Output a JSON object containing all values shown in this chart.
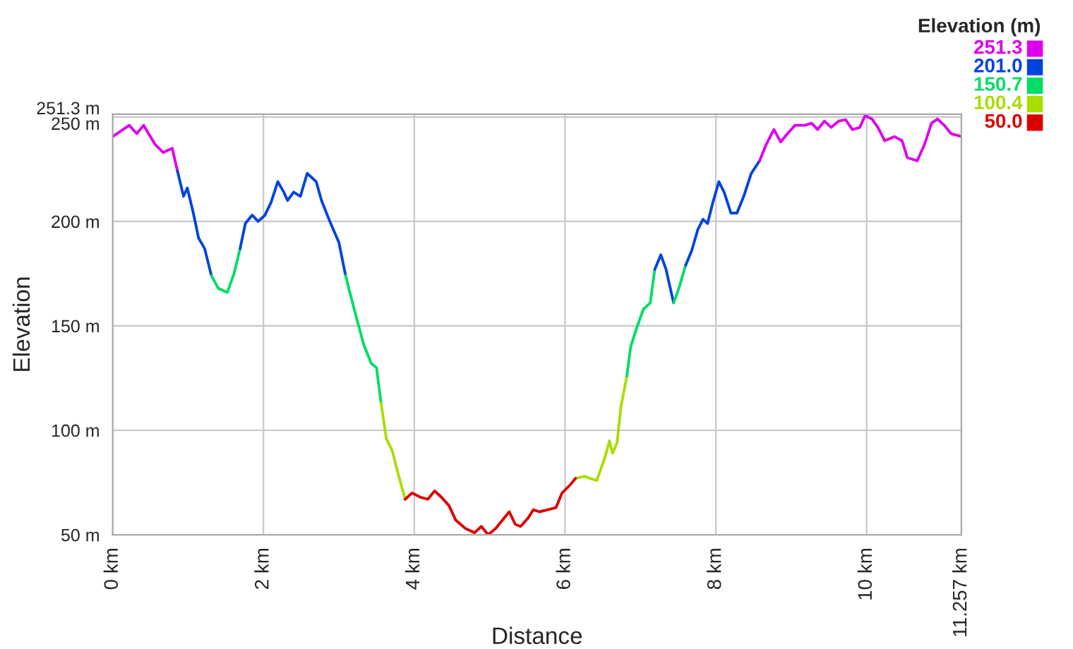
{
  "chart_data": {
    "type": "line",
    "xlabel": "Distance",
    "ylabel": "Elevation",
    "series": [
      {
        "color": "#dd00ee",
        "x": [
          0,
          0.22,
          0.32,
          0.41,
          0.56,
          0.67,
          0.79,
          0.86
        ],
        "values": [
          240.6,
          246,
          242,
          246,
          237,
          233,
          235,
          224
        ]
      },
      {
        "color": "#0044dd",
        "x": [
          0.86,
          0.94,
          0.99,
          1.07,
          1.14,
          1.22,
          1.31
        ],
        "values": [
          224,
          212,
          216,
          204,
          192,
          187,
          174
        ]
      },
      {
        "color": "#00dd66",
        "x": [
          1.31,
          1.4,
          1.52,
          1.61,
          1.69
        ],
        "values": [
          174,
          168,
          166,
          175,
          187
        ]
      },
      {
        "color": "#0044dd",
        "x": [
          1.69,
          1.76,
          1.85,
          1.93,
          2.02,
          2.1,
          2.19,
          2.27,
          2.32,
          2.4,
          2.49,
          2.58,
          2.7,
          2.77,
          2.88,
          3.0,
          3.09
        ],
        "values": [
          187,
          199,
          203,
          200,
          203,
          209,
          219,
          214,
          210,
          214,
          212,
          223,
          219,
          210,
          200,
          190,
          174
        ]
      },
      {
        "color": "#00dd66",
        "x": [
          3.09,
          3.16,
          3.24,
          3.33,
          3.43,
          3.5,
          3.56
        ],
        "values": [
          174,
          164,
          153,
          141,
          132,
          130,
          113
        ]
      },
      {
        "color": "#aadd00",
        "x": [
          3.56,
          3.63,
          3.71,
          3.78,
          3.88
        ],
        "values": [
          113,
          96,
          90,
          80,
          67
        ]
      },
      {
        "color": "#aadd00",
        "x": [
          6.14,
          6.26,
          6.33,
          6.42,
          6.52,
          6.59,
          6.63,
          6.69,
          6.74,
          6.82
        ],
        "values": [
          77,
          78,
          77,
          76,
          86,
          95,
          89,
          94,
          111,
          126
        ]
      },
      {
        "color": "#00dd66",
        "x": [
          6.82,
          6.87,
          6.95,
          7.04,
          7.13,
          7.19
        ],
        "values": [
          126,
          140,
          149,
          158,
          161,
          177
        ]
      },
      {
        "color": "#0044dd",
        "x": [
          7.19,
          7.27,
          7.34,
          7.44
        ],
        "values": [
          177,
          184,
          177,
          161
        ]
      },
      {
        "color": "#00dd66",
        "x": [
          7.44,
          7.51,
          7.6
        ],
        "values": [
          161,
          168,
          179
        ]
      },
      {
        "color": "#0044dd",
        "x": [
          7.6,
          7.68,
          7.76,
          7.83,
          7.89,
          7.96,
          8.04,
          8.11,
          8.2,
          8.28,
          8.37,
          8.47,
          8.58
        ],
        "values": [
          179,
          186,
          196,
          201,
          199,
          209,
          219,
          214,
          204,
          204,
          212,
          223,
          229
        ]
      },
      {
        "color": "#dd00ee",
        "x": [
          8.58,
          8.67,
          8.77,
          8.86,
          8.95,
          9.05,
          9.18,
          9.27,
          9.35,
          9.44,
          9.53,
          9.63,
          9.72,
          9.81,
          9.91,
          9.98,
          10.07,
          10.15,
          10.24,
          10.37,
          10.47,
          10.54,
          10.67,
          10.77,
          10.86,
          10.94,
          11.03,
          11.12,
          11.257
        ],
        "values": [
          229,
          237,
          244,
          238,
          242,
          246,
          246,
          247,
          244,
          248,
          245,
          248,
          248.7,
          244,
          245,
          250.7,
          249,
          245,
          238.6,
          240.6,
          238.6,
          230.5,
          229,
          237,
          247,
          249,
          246,
          242,
          240.6
        ]
      },
      {
        "color": "#dd0000",
        "x": [
          3.88,
          3.97,
          4.08,
          4.18,
          4.27,
          4.36,
          4.46,
          4.55,
          4.68,
          4.8,
          4.89,
          4.98,
          5.08,
          5.17,
          5.26,
          5.34,
          5.41,
          5.51,
          5.58,
          5.66,
          5.77,
          5.88,
          5.96,
          6.07,
          6.14
        ],
        "values": [
          67,
          70,
          68,
          67,
          71,
          68,
          64,
          57,
          53,
          51,
          54,
          50,
          53,
          57,
          61,
          55,
          54,
          58,
          62,
          61,
          62,
          63,
          70,
          74,
          77
        ]
      }
    ],
    "xlim": [
      0,
      11.257
    ],
    "xticks": [
      {
        "value": 0,
        "label": "0 km"
      },
      {
        "value": 2,
        "label": "2 km"
      },
      {
        "value": 4,
        "label": "4 km"
      },
      {
        "value": 6,
        "label": "6 km"
      },
      {
        "value": 8,
        "label": "8 km"
      },
      {
        "value": 10,
        "label": "10 km"
      },
      {
        "value": 11.257,
        "label": "11.257 km"
      }
    ],
    "ylim": [
      50,
      251.3
    ],
    "yticks": [
      {
        "value": 50,
        "label": "50 m"
      },
      {
        "value": 100,
        "label": "100 m"
      },
      {
        "value": 150,
        "label": "150 m"
      },
      {
        "value": 200,
        "label": "200 m"
      },
      {
        "value": 250,
        "label": "250 m"
      },
      {
        "value": 251.3,
        "label": "251.3 m"
      }
    ],
    "grid": true,
    "clabel": "Elevation (m)",
    "cticks": [
      {
        "value": 251.3,
        "label": "251.3"
      },
      {
        "value": 201.0,
        "label": "201.0"
      },
      {
        "value": 150.7,
        "label": "150.7"
      },
      {
        "value": 100.4,
        "label": "100.4"
      },
      {
        "value": 50.0,
        "label": "50.0"
      }
    ],
    "colors": [
      "#dd00ee",
      "#0044dd",
      "#00dd66",
      "#aadd00",
      "#dd0000"
    ]
  }
}
